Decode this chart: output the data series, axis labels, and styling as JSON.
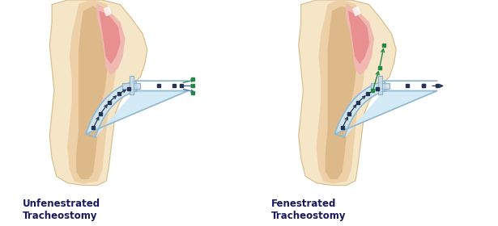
{
  "bg_color": "#ffffff",
  "skin_light": "#f5e6c8",
  "skin_mid": "#edcfa8",
  "skin_neck_inner": "#ddb888",
  "throat_pink_light": "#f0b8b0",
  "throat_pink_dark": "#e89090",
  "throat_deeper": "#d47878",
  "tube_fill": "#d0e8f5",
  "tube_stroke": "#90b8d0",
  "flange_fill": "#c8dcea",
  "flange_stroke": "#90b0c8",
  "arrow_blue": "#3366aa",
  "arrow_dark": "#223355",
  "arrow_green": "#228844",
  "dot_blue": "#223355",
  "dot_green": "#228844",
  "text_color": "#1a1a5e",
  "label_left": "Unfenestrated\nTracheostomy",
  "label_right": "Fenestrated\nTracheostomy",
  "label_fontsize": 8.5,
  "label_fontweight": "bold",
  "divider_color": "#dddddd"
}
